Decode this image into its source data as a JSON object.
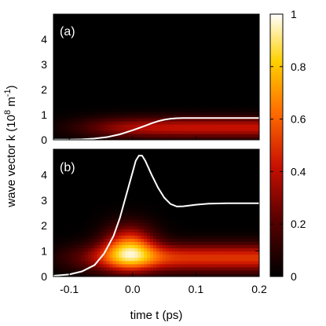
{
  "chart_data": [
    {
      "type": "heatmap",
      "panel_label": "(a)",
      "xlim": [
        -0.125,
        0.2
      ],
      "ylim": [
        0,
        5
      ],
      "yticks": [
        0,
        1,
        2,
        3,
        4
      ],
      "show_x_tick_labels": false,
      "field": [
        {
          "t0": -0.06,
          "tau": 0.03,
          "k": 0.5,
          "sigma": 0.42,
          "amp": 0.42,
          "sustain": true
        }
      ],
      "curve": {
        "name": "",
        "color": "#ffffff",
        "points": [
          [
            -0.125,
            0.01
          ],
          [
            -0.1,
            0.01
          ],
          [
            -0.08,
            0.02
          ],
          [
            -0.06,
            0.05
          ],
          [
            -0.04,
            0.11
          ],
          [
            -0.02,
            0.22
          ],
          [
            0.0,
            0.38
          ],
          [
            0.01,
            0.47
          ],
          [
            0.02,
            0.56
          ],
          [
            0.03,
            0.66
          ],
          [
            0.04,
            0.74
          ],
          [
            0.05,
            0.8
          ],
          [
            0.06,
            0.84
          ],
          [
            0.07,
            0.86
          ],
          [
            0.08,
            0.87
          ],
          [
            0.1,
            0.87
          ],
          [
            0.15,
            0.87
          ],
          [
            0.2,
            0.87
          ]
        ]
      }
    },
    {
      "type": "heatmap",
      "panel_label": "(b)",
      "xlim": [
        -0.125,
        0.2
      ],
      "ylim": [
        0,
        5
      ],
      "yticks": [
        0,
        1,
        2,
        3,
        4
      ],
      "xticks": [
        -0.1,
        0.0,
        0.1,
        0.2
      ],
      "x_tick_labels": [
        "-0.1",
        "0.0",
        "0.1",
        "0.2"
      ],
      "show_x_tick_labels": true,
      "field": [
        {
          "t0": -0.075,
          "tau": 0.028,
          "k": 0.75,
          "sigma": 0.55,
          "amp": 0.5,
          "sustain": true
        },
        {
          "t0": -0.005,
          "tau": 0.04,
          "k": 1.15,
          "sigma": 0.85,
          "amp": 0.6,
          "sustain": false
        }
      ],
      "curve": {
        "name": "",
        "color": "#ffffff",
        "points": [
          [
            -0.125,
            0.03
          ],
          [
            -0.1,
            0.08
          ],
          [
            -0.08,
            0.2
          ],
          [
            -0.06,
            0.45
          ],
          [
            -0.045,
            0.9
          ],
          [
            -0.03,
            1.6
          ],
          [
            -0.02,
            2.3
          ],
          [
            -0.01,
            3.2
          ],
          [
            0.0,
            4.1
          ],
          [
            0.005,
            4.55
          ],
          [
            0.01,
            4.75
          ],
          [
            0.015,
            4.75
          ],
          [
            0.02,
            4.55
          ],
          [
            0.03,
            4.0
          ],
          [
            0.04,
            3.5
          ],
          [
            0.05,
            3.1
          ],
          [
            0.06,
            2.85
          ],
          [
            0.07,
            2.75
          ],
          [
            0.08,
            2.76
          ],
          [
            0.1,
            2.82
          ],
          [
            0.12,
            2.86
          ],
          [
            0.15,
            2.88
          ],
          [
            0.2,
            2.88
          ]
        ]
      }
    }
  ],
  "axes": {
    "xlabel": "time t (ps)",
    "ylabel": "wave vector k (10",
    "ylabel_exp": "8",
    "ylabel_unit": " m",
    "ylabel_unit_exp": "-1",
    "ylabel_close": ")"
  },
  "colorbar": {
    "min": 0,
    "max": 1,
    "ticks": [
      0,
      0.2,
      0.4,
      0.6,
      0.8,
      1
    ],
    "tick_labels": [
      "0",
      "0.2",
      "0.4",
      "0.6",
      "0.8",
      "1"
    ],
    "colormap": [
      [
        0.0,
        "#000000"
      ],
      [
        0.22,
        "#5a0000"
      ],
      [
        0.42,
        "#c81000"
      ],
      [
        0.62,
        "#ff6a00"
      ],
      [
        0.82,
        "#ffd000"
      ],
      [
        1.0,
        "#ffffff"
      ]
    ]
  }
}
